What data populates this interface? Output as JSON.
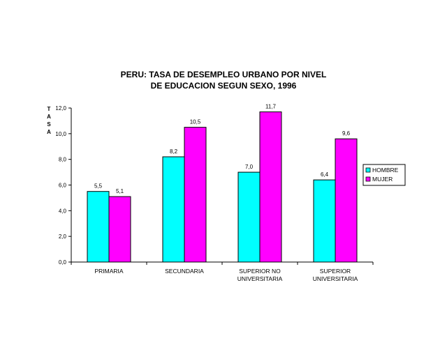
{
  "chart_data": {
    "type": "bar",
    "title_lines": [
      "PERU: TASA DE DESEMPLEO URBANO POR NIVEL",
      "DE EDUCACION SEGUN SEXO, 1996"
    ],
    "ylabel": "TASA",
    "categories": [
      [
        "PRIMARIA"
      ],
      [
        "SECUNDARIA"
      ],
      [
        "SUPERIOR NO",
        "UNIVERSITARIA"
      ],
      [
        "SUPERIOR",
        "UNIVERSITARIA"
      ]
    ],
    "ylim": [
      0,
      12
    ],
    "yticks": [
      0,
      2,
      4,
      6,
      8,
      10,
      12
    ],
    "ytick_labels": [
      "0,0",
      "2,0",
      "4,0",
      "6,0",
      "8,0",
      "10,0",
      "12,0"
    ],
    "series": [
      {
        "name": "HOMBRE",
        "color": "#00FFFF",
        "values": [
          5.5,
          8.2,
          7.0,
          6.4
        ],
        "labels": [
          "5,5",
          "8,2",
          "7,0",
          "6,4"
        ]
      },
      {
        "name": "MUJER",
        "color": "#FF00FF",
        "values": [
          5.1,
          10.5,
          11.7,
          9.6
        ],
        "labels": [
          "5,1",
          "10,5",
          "11,7",
          "9,6"
        ]
      }
    ],
    "grid": false,
    "legend_position": "right"
  }
}
